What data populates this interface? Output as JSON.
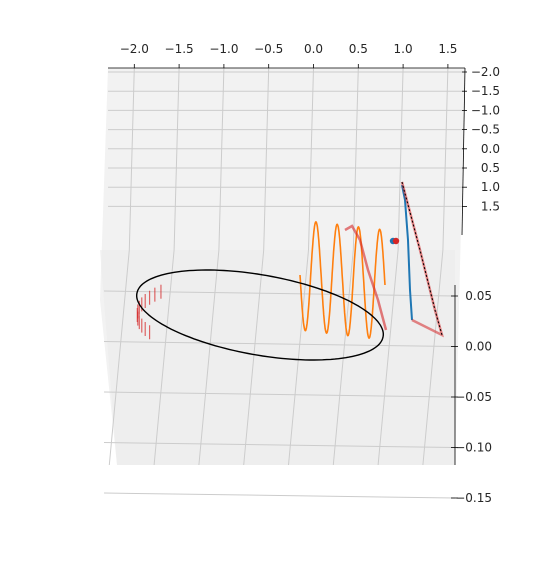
{
  "chart_data": {
    "type": "line",
    "projection": "3d",
    "title": "",
    "xlabel": "",
    "ylabel": "",
    "zlabel": "",
    "grid": true,
    "axes": {
      "x": {
        "ticks": [
          -2.0,
          -1.5,
          -1.0,
          -0.5,
          0.0,
          0.5,
          1.0,
          1.5
        ],
        "tick_labels": [
          "−2.0",
          "−1.5",
          "−1.0",
          "−0.5",
          "0.0",
          "0.5",
          "1.0",
          "1.5"
        ],
        "range": [
          -2.25,
          1.6
        ]
      },
      "y": {
        "ticks": [
          -2.0,
          -1.5,
          -1.0,
          -0.5,
          0.0,
          0.5,
          1.0,
          1.5
        ],
        "tick_labels": [
          "−2.0",
          "−1.5",
          "−1.0",
          "−0.5",
          "0.0",
          "0.5",
          "1.0",
          "1.5"
        ],
        "range": [
          -2.05,
          1.7
        ]
      },
      "z": {
        "ticks": [
          0.05,
          0.0,
          -0.05,
          -0.1,
          -0.15
        ],
        "tick_labels": [
          "0.05",
          "0.00",
          "−0.05",
          "−0.10",
          "−0.15"
        ],
        "range": [
          -0.17,
          0.1
        ]
      }
    },
    "series": [
      {
        "kind": "ellipse-orbit",
        "color": "#000000",
        "center": [
          -0.35,
          0.02
        ],
        "semi_axes": [
          1.5,
          0.11
        ],
        "z": 0.0,
        "points": 160
      },
      {
        "kind": "oscillating-path",
        "color": "#ff7f0e",
        "x_range": [
          -0.2,
          0.8
        ],
        "turns": 4,
        "z_amplitude": 0.09
      },
      {
        "kind": "narrow-loop",
        "color": "#1f77b4",
        "x": [
          1.0,
          1.05,
          1.1
        ],
        "z": [
          0.2,
          0.0,
          -0.05
        ]
      },
      {
        "kind": "error-bars",
        "color": "#d62728",
        "along": "black-and-narrow-loop"
      }
    ],
    "markers": [
      {
        "color": "#1f77b4",
        "x": 0.93,
        "z": 0.09
      },
      {
        "color": "#d62728",
        "x": 0.91,
        "z": 0.09
      }
    ]
  }
}
